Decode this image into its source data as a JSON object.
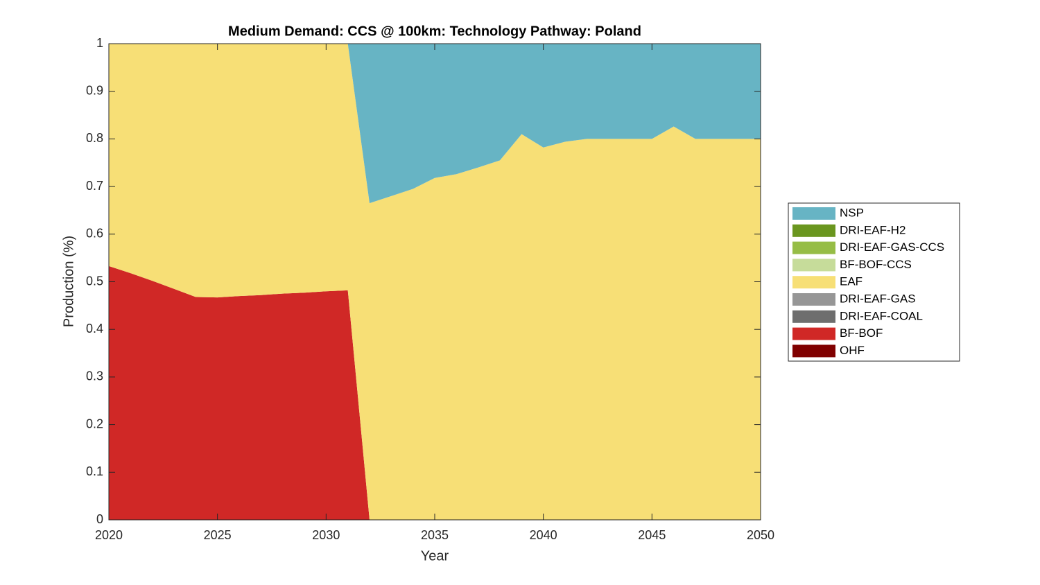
{
  "chart_data": {
    "type": "stacked_area",
    "title": "Medium Demand: CCS @ 100km: Technology Pathway: Poland",
    "xlabel": "Year",
    "ylabel": "Production (%)",
    "x": [
      2020,
      2021,
      2022,
      2023,
      2024,
      2025,
      2026,
      2027,
      2028,
      2029,
      2030,
      2031,
      2032,
      2033,
      2034,
      2035,
      2036,
      2037,
      2038,
      2039,
      2040,
      2041,
      2042,
      2043,
      2044,
      2045,
      2046,
      2047,
      2048,
      2049,
      2050
    ],
    "series": [
      {
        "name": "OHF",
        "color": "#800000",
        "values": [
          0,
          0,
          0,
          0,
          0,
          0,
          0,
          0,
          0,
          0,
          0,
          0,
          0,
          0,
          0,
          0,
          0,
          0,
          0,
          0,
          0,
          0,
          0,
          0,
          0,
          0,
          0,
          0,
          0,
          0,
          0
        ]
      },
      {
        "name": "BF-BOF",
        "color": "#d02826",
        "values": [
          0.533,
          0.518,
          0.502,
          0.485,
          0.468,
          0.467,
          0.47,
          0.472,
          0.475,
          0.477,
          0.48,
          0.482,
          0,
          0,
          0,
          0,
          0,
          0,
          0,
          0,
          0,
          0,
          0,
          0,
          0,
          0,
          0,
          0,
          0,
          0,
          0
        ]
      },
      {
        "name": "DRI-EAF-COAL",
        "color": "#6e6e6e",
        "values": [
          0,
          0,
          0,
          0,
          0,
          0,
          0,
          0,
          0,
          0,
          0,
          0,
          0,
          0,
          0,
          0,
          0,
          0,
          0,
          0,
          0,
          0,
          0,
          0,
          0,
          0,
          0,
          0,
          0,
          0,
          0
        ]
      },
      {
        "name": "DRI-EAF-GAS",
        "color": "#969696",
        "values": [
          0,
          0,
          0,
          0,
          0,
          0,
          0,
          0,
          0,
          0,
          0,
          0,
          0,
          0,
          0,
          0,
          0,
          0,
          0,
          0,
          0,
          0,
          0,
          0,
          0,
          0,
          0,
          0,
          0,
          0,
          0
        ]
      },
      {
        "name": "EAF",
        "color": "#f7df76",
        "values": [
          0.467,
          0.482,
          0.498,
          0.515,
          0.532,
          0.533,
          0.53,
          0.528,
          0.525,
          0.523,
          0.52,
          0.518,
          0.665,
          0.68,
          0.695,
          0.718,
          0.726,
          0.74,
          0.755,
          0.81,
          0.782,
          0.794,
          0.8,
          0.8,
          0.8,
          0.8,
          0.826,
          0.8,
          0.8,
          0.8,
          0.8
        ]
      },
      {
        "name": "BF-BOF-CCS",
        "color": "#c6dc9a",
        "values": [
          0,
          0,
          0,
          0,
          0,
          0,
          0,
          0,
          0,
          0,
          0,
          0,
          0,
          0,
          0,
          0,
          0,
          0,
          0,
          0,
          0,
          0,
          0,
          0,
          0,
          0,
          0,
          0,
          0,
          0,
          0
        ]
      },
      {
        "name": "DRI-EAF-GAS-CCS",
        "color": "#96bd46",
        "values": [
          0,
          0,
          0,
          0,
          0,
          0,
          0,
          0,
          0,
          0,
          0,
          0,
          0,
          0,
          0,
          0,
          0,
          0,
          0,
          0,
          0,
          0,
          0,
          0,
          0,
          0,
          0,
          0,
          0,
          0,
          0
        ]
      },
      {
        "name": "DRI-EAF-H2",
        "color": "#6a961f",
        "values": [
          0,
          0,
          0,
          0,
          0,
          0,
          0,
          0,
          0,
          0,
          0,
          0,
          0,
          0,
          0,
          0,
          0,
          0,
          0,
          0,
          0,
          0,
          0,
          0,
          0,
          0,
          0,
          0,
          0,
          0,
          0
        ]
      },
      {
        "name": "NSP",
        "color": "#67b4c4",
        "values": [
          0,
          0,
          0,
          0,
          0,
          0,
          0,
          0,
          0,
          0,
          0,
          0,
          0.335,
          0.32,
          0.305,
          0.282,
          0.274,
          0.26,
          0.245,
          0.19,
          0.218,
          0.206,
          0.2,
          0.2,
          0.2,
          0.2,
          0.174,
          0.2,
          0.2,
          0.2,
          0.2
        ]
      }
    ],
    "xlim": [
      2020,
      2050
    ],
    "xticks": [
      2020,
      2025,
      2030,
      2035,
      2040,
      2045,
      2050
    ],
    "ylim": [
      0,
      1
    ],
    "yticks": [
      0,
      0.1,
      0.2,
      0.3,
      0.4,
      0.5,
      0.6,
      0.7,
      0.8,
      0.9,
      1
    ],
    "legend": "right"
  }
}
